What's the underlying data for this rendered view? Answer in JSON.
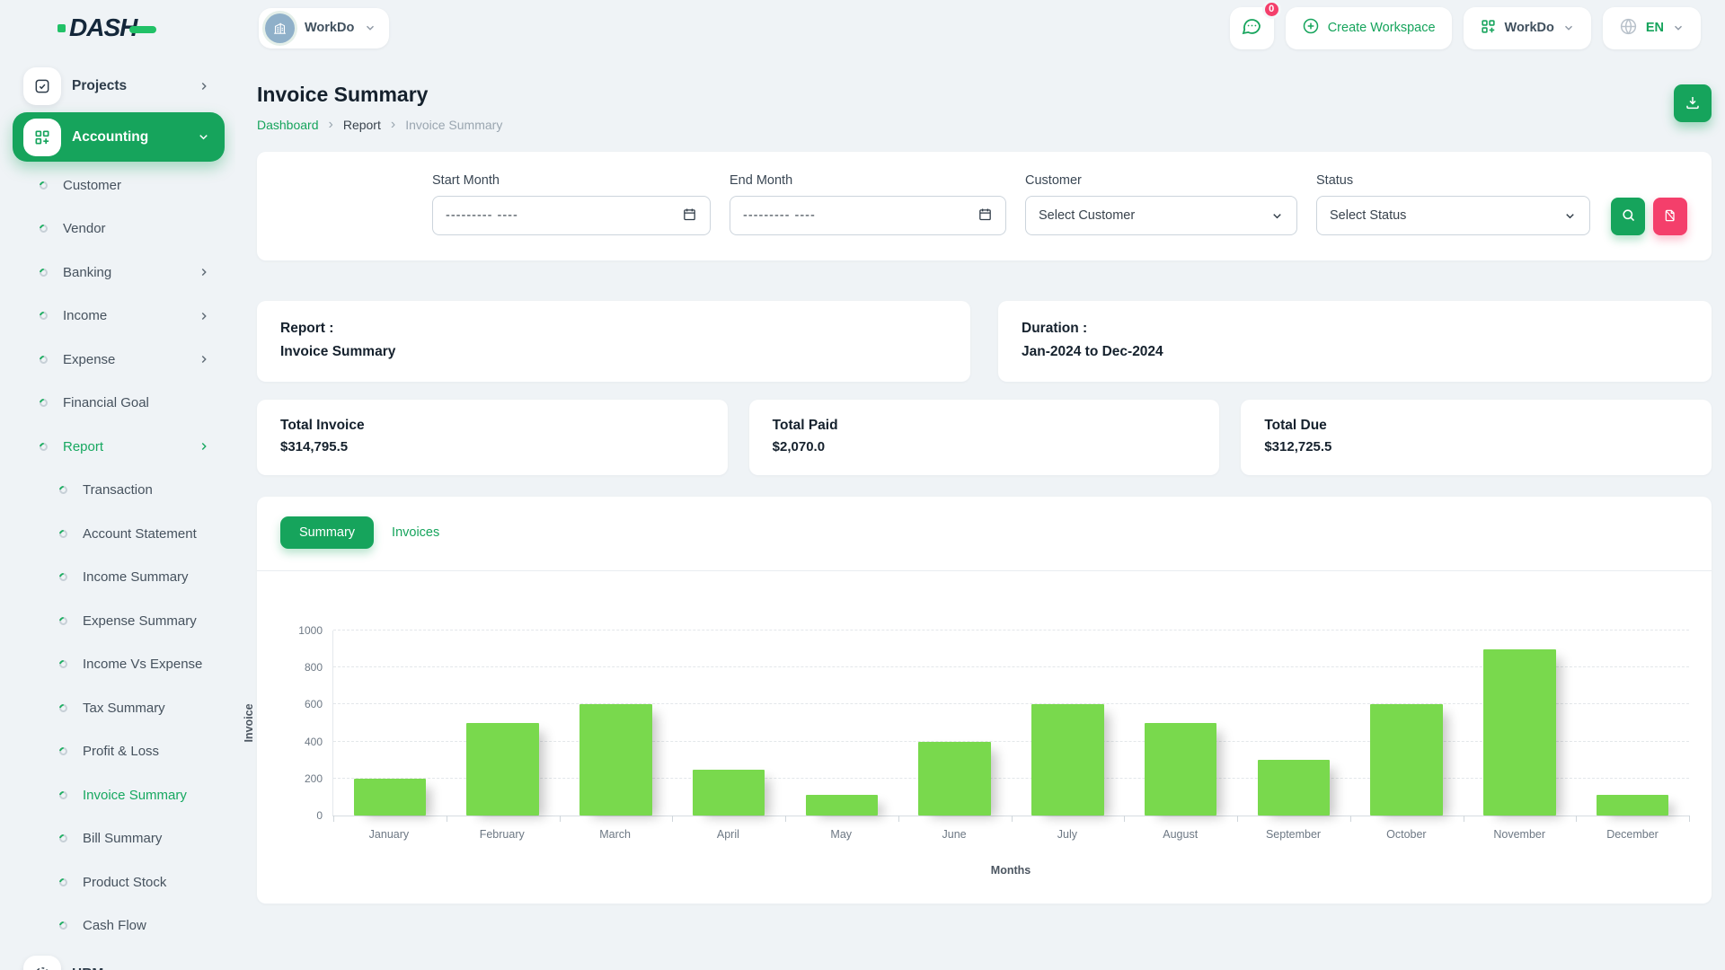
{
  "header": {
    "logo_text": "DASH",
    "workspace_chip": {
      "name": "WorkDo",
      "avatar_icon": "building-icon"
    },
    "messages": {
      "icon": "chat-icon",
      "badge_count": "0"
    },
    "create_workspace": {
      "icon": "plus-circle-icon",
      "label": "Create Workspace"
    },
    "workspace_dropdown": {
      "icon": "grid-plus-icon",
      "label": "WorkDo"
    },
    "language_dropdown": {
      "icon": "globe-icon",
      "value": "EN"
    }
  },
  "sidebar": {
    "items": [
      {
        "label": "Projects",
        "level": 0,
        "icon": "checkbox-icon",
        "chevron": "right",
        "active": false
      },
      {
        "label": "Accounting",
        "level": 0,
        "icon": "grid-plus-icon",
        "chevron": "down",
        "active": true
      },
      {
        "label": "Customer",
        "level": 1,
        "chevron": null,
        "active": false
      },
      {
        "label": "Vendor",
        "level": 1,
        "chevron": null,
        "active": false
      },
      {
        "label": "Banking",
        "level": 1,
        "chevron": "right",
        "active": false
      },
      {
        "label": "Income",
        "level": 1,
        "chevron": "right",
        "active": false
      },
      {
        "label": "Expense",
        "level": 1,
        "chevron": "right",
        "active": false
      },
      {
        "label": "Financial Goal",
        "level": 1,
        "chevron": null,
        "active": false
      },
      {
        "label": "Report",
        "level": 1,
        "chevron": "right",
        "active": true
      },
      {
        "label": "Transaction",
        "level": 2,
        "chevron": null,
        "active": false
      },
      {
        "label": "Account Statement",
        "level": 2,
        "chevron": null,
        "active": false
      },
      {
        "label": "Income Summary",
        "level": 2,
        "chevron": null,
        "active": false
      },
      {
        "label": "Expense Summary",
        "level": 2,
        "chevron": null,
        "active": false
      },
      {
        "label": "Income Vs Expense",
        "level": 2,
        "chevron": null,
        "active": false
      },
      {
        "label": "Tax Summary",
        "level": 2,
        "chevron": null,
        "active": false
      },
      {
        "label": "Profit & Loss",
        "level": 2,
        "chevron": null,
        "active": false
      },
      {
        "label": "Invoice Summary",
        "level": 2,
        "chevron": null,
        "active": true
      },
      {
        "label": "Bill Summary",
        "level": 2,
        "chevron": null,
        "active": false
      },
      {
        "label": "Product Stock",
        "level": 2,
        "chevron": null,
        "active": false
      },
      {
        "label": "Cash Flow",
        "level": 2,
        "chevron": null,
        "active": false
      },
      {
        "label": "HRM",
        "level": 0,
        "icon": "hrm-icon",
        "chevron": "right",
        "active": false
      }
    ]
  },
  "page": {
    "title": "Invoice Summary",
    "breadcrumb": {
      "home": "Dashboard",
      "middle": "Report",
      "current": "Invoice Summary"
    },
    "download_icon": "download-icon"
  },
  "filters": {
    "start_month": {
      "label": "Start Month",
      "placeholder": "--------- ----",
      "icon": "calendar-icon"
    },
    "end_month": {
      "label": "End Month",
      "placeholder": "--------- ----",
      "icon": "calendar-icon"
    },
    "customer": {
      "label": "Customer",
      "value": "Select Customer",
      "icon": "chevron-down-icon"
    },
    "status": {
      "label": "Status",
      "value": "Select Status",
      "icon": "chevron-down-icon"
    },
    "search_icon": "search-icon",
    "reset_icon": "file-slash-icon"
  },
  "report_info": {
    "report_label": "Report :",
    "report_value": "Invoice Summary",
    "duration_label": "Duration :",
    "duration_value": "Jan-2024 to Dec-2024"
  },
  "totals": [
    {
      "label": "Total Invoice",
      "value": "$314,795.5"
    },
    {
      "label": "Total Paid",
      "value": "$2,070.0"
    },
    {
      "label": "Total Due",
      "value": "$312,725.5"
    }
  ],
  "tabs": {
    "summary": "Summary",
    "invoices": "Invoices"
  },
  "chart_data": {
    "type": "bar",
    "title": "",
    "categories": [
      "January",
      "February",
      "March",
      "April",
      "May",
      "June",
      "July",
      "August",
      "September",
      "October",
      "November",
      "December"
    ],
    "values": [
      200,
      500,
      600,
      250,
      110,
      400,
      600,
      500,
      300,
      600,
      900,
      110
    ],
    "xlabel": "Months",
    "ylabel": "Invoice",
    "ylim": [
      0,
      1000
    ],
    "yticks": [
      0,
      200,
      400,
      600,
      800,
      1000
    ],
    "grid": "dashed-horizontal",
    "legend": "none",
    "bar_color": "#79d94d"
  },
  "colors": {
    "primary": "#16a45c",
    "danger": "#f43f6b",
    "bar": "#79d94d",
    "logo_accent": "#21c167",
    "page_bg": "#eff3f6"
  }
}
